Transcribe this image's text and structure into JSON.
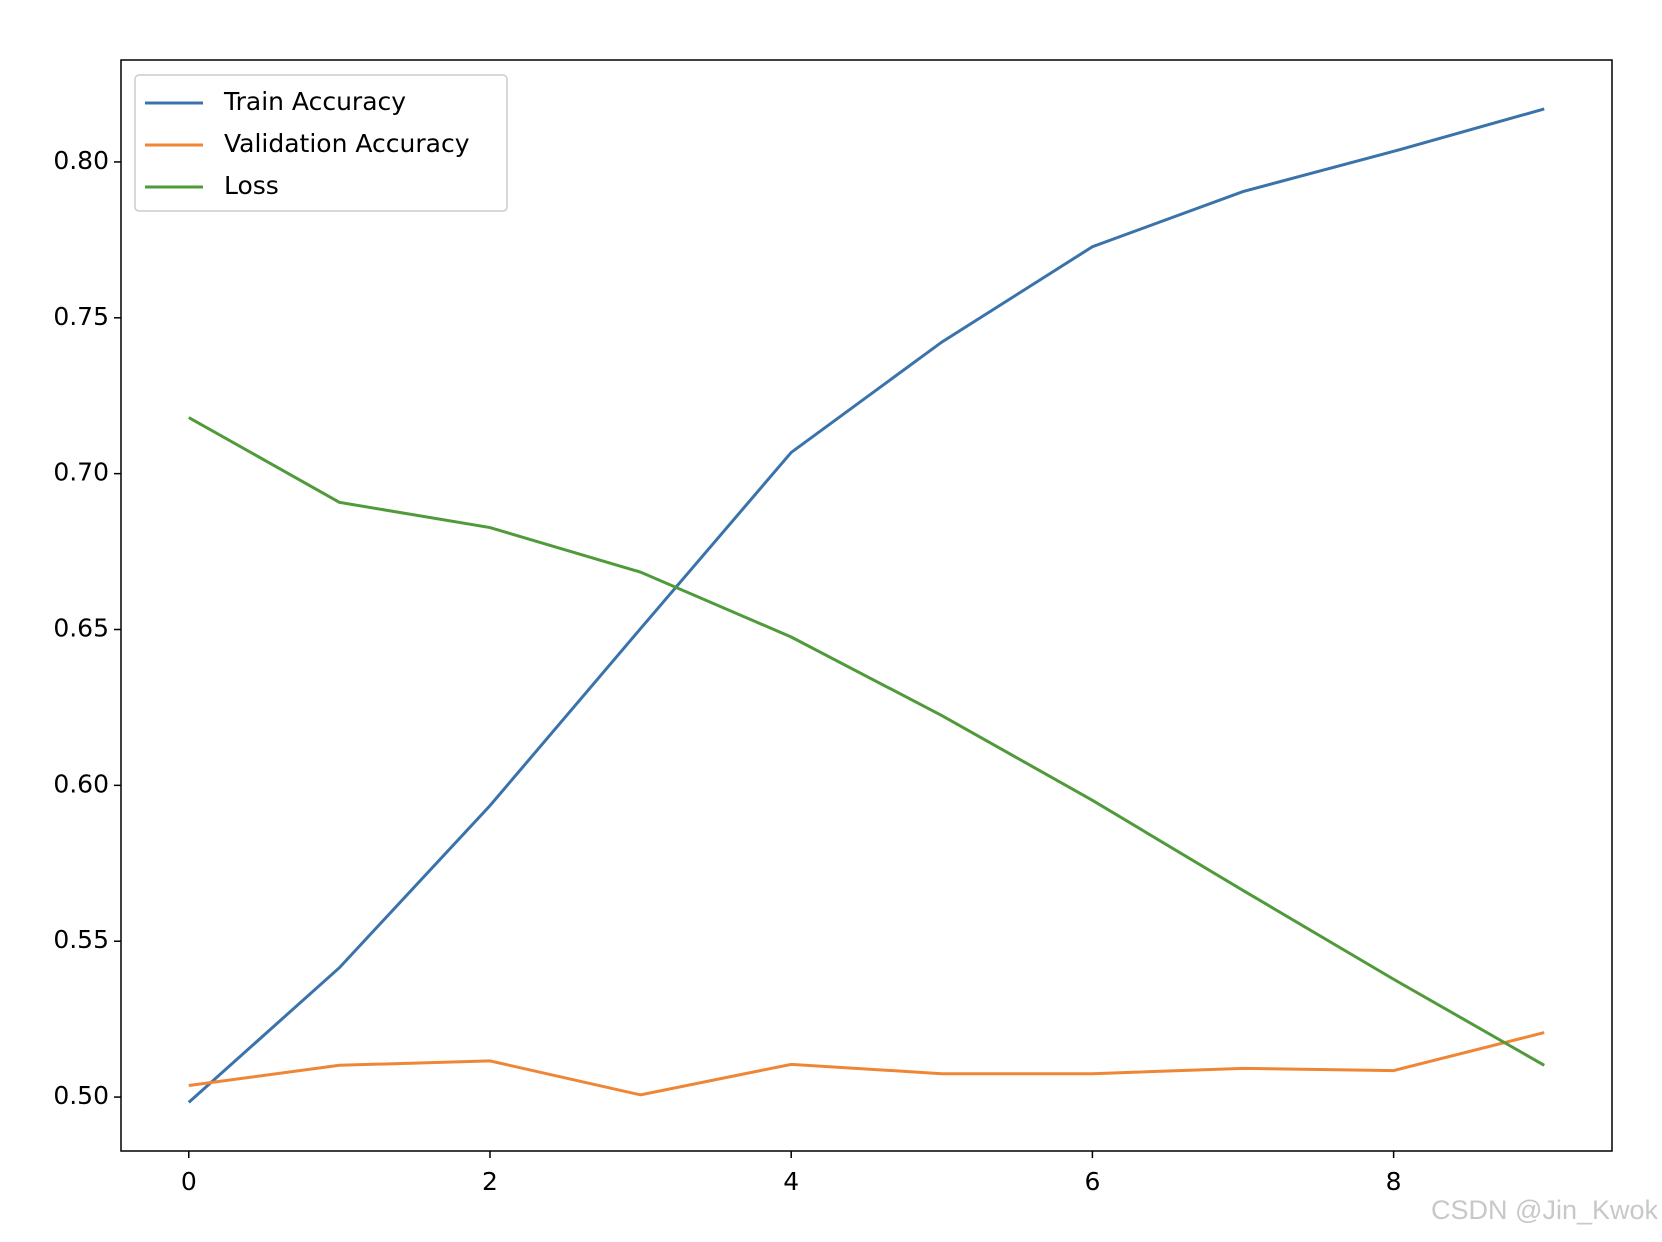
{
  "chart_data": {
    "type": "line",
    "x": [
      0,
      1,
      2,
      3,
      4,
      5,
      6,
      7,
      8,
      9
    ],
    "series": [
      {
        "name": "Train Accuracy",
        "color": "#3a73ab",
        "values": [
          0.4983,
          0.5415,
          0.5935,
          0.6503,
          0.7068,
          0.7422,
          0.7728,
          0.7905,
          0.8034,
          0.817
        ]
      },
      {
        "name": "Validation Accuracy",
        "color": "#ef8636",
        "values": [
          0.5037,
          0.5102,
          0.5116,
          0.5007,
          0.5105,
          0.5075,
          0.5075,
          0.5092,
          0.5085,
          0.5207
        ]
      },
      {
        "name": "Loss",
        "color": "#4f9a3a",
        "values": [
          0.718,
          0.6908,
          0.6827,
          0.6684,
          0.6476,
          0.6224,
          0.5952,
          0.5663,
          0.5378,
          0.5102
        ]
      }
    ],
    "xlim": [
      -0.45,
      9.45
    ],
    "xticks": [
      0,
      2,
      4,
      6,
      8
    ],
    "ylim": [
      0.4827,
      0.8327
    ],
    "yticks": [
      {
        "value": 0.5,
        "label": "0.50"
      },
      {
        "value": 0.55,
        "label": "0.55"
      },
      {
        "value": 0.6,
        "label": "0.60"
      },
      {
        "value": 0.65,
        "label": "0.65"
      },
      {
        "value": 0.7,
        "label": "0.70"
      },
      {
        "value": 0.75,
        "label": "0.75"
      },
      {
        "value": 0.8,
        "label": "0.80"
      }
    ],
    "legend": "upper left",
    "grid": false,
    "watermark": "CSDN @Jin_Kwok"
  }
}
